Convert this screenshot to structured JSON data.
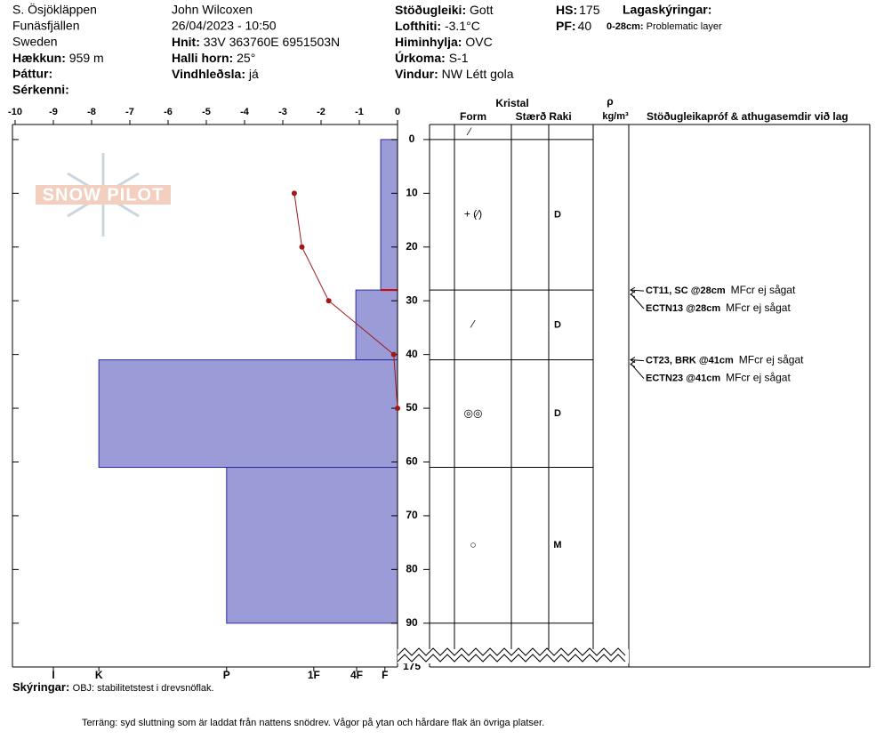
{
  "header": {
    "location": "S. Ösjökläppen",
    "range": "Funäsfjällen",
    "country": "Sweden",
    "elevation_label": "Hækkun:",
    "elevation": "959 m",
    "aspect_label": "Þáttur:",
    "features_label": "Sérkenni:",
    "observer": "John Wilcoxen",
    "datetime": "26/04/2023 - 10:50",
    "coords_label": "Hnit:",
    "coords": "33V 363760E 6951503N",
    "slope_label": "Halli horn:",
    "slope": "25°",
    "wind_loading_label": "Vindhleðsla:",
    "wind_loading": "já",
    "stability_label": "Stöðugleiki:",
    "stability": "Gott",
    "air_temp_label": "Lofthiti:",
    "air_temp": "-3.1°C",
    "sky_label": "Himinhylja:",
    "sky": "OVC",
    "precip_label": "Úrkoma:",
    "precip": "S-1",
    "wind_label": "Vindur:",
    "wind": "NW Létt gola",
    "hs_label": "HS:",
    "hs": 175,
    "pf_label": "PF:",
    "pf": 40,
    "layer_notes_label": "Lagaskýringar:",
    "layer_note_range": "0-28cm:",
    "layer_note": "Problematic layer"
  },
  "logo": "SNOW PILOT",
  "chart_data": {
    "type": "snow-profile",
    "xlim": [
      -10.07,
      0
    ],
    "xticks": [
      -10,
      -9,
      -8,
      -7,
      -6,
      -5,
      -4,
      -3,
      -2,
      -1,
      0
    ],
    "ylim": [
      -2.8,
      95
    ],
    "yticks": [
      0,
      10,
      20,
      30,
      40,
      50,
      60,
      70,
      80,
      90
    ],
    "hardness_lim": [
      0,
      10.07
    ],
    "hardness_ticks": [
      {
        "value": 9.0,
        "label": "I"
      },
      {
        "value": 7.81,
        "label": "K"
      },
      {
        "value": 4.47,
        "label": "P"
      },
      {
        "value": 2.19,
        "label": "1F"
      },
      {
        "value": 1.07,
        "label": "4F"
      },
      {
        "value": 0.33,
        "label": "F"
      }
    ],
    "temperature": {
      "color": "#a01818",
      "depths": [
        10,
        20,
        30,
        40,
        50
      ],
      "values": [
        -2.7,
        -2.5,
        -1.8,
        -0.1,
        0
      ]
    },
    "layers": {
      "color": "#9b9bd8",
      "top": [
        0,
        28,
        41,
        61
      ],
      "bottom": [
        28,
        41,
        61,
        90
      ],
      "hardness": [
        0.44,
        1.09,
        7.81,
        4.47
      ]
    },
    "problem_layer": {
      "depth": 28,
      "color": "#cc0000"
    }
  },
  "table": {
    "headers": {
      "crystal": "Kristal",
      "form": "Form",
      "size": "Stærð",
      "moisture": "Raki",
      "density_symbol": "ρ",
      "density_unit": "kg/m³",
      "tests": "Stöðugleikapróf & athugasemdir við lag"
    },
    "surface_form": "⁄",
    "rows": [
      {
        "form": "+ (⁄)",
        "moisture": "D"
      },
      {
        "form": "⁄",
        "moisture": "D"
      },
      {
        "form": "◎◎",
        "moisture": "D"
      },
      {
        "form": "○",
        "moisture": "M"
      }
    ]
  },
  "tests": [
    {
      "code": "CT11, SC @28cm",
      "note": "MFcr ej sågat",
      "depth": 28
    },
    {
      "code": "ECTN13 @28cm",
      "note": "MFcr ej sågat",
      "depth": 28
    },
    {
      "code": "CT23, BRK @41cm",
      "note": "MFcr ej sågat",
      "depth": 41
    },
    {
      "code": "ECTN23 @41cm",
      "note": "MFcr ej sågat",
      "depth": 41
    }
  ],
  "legend": {
    "label": "Skýringar:",
    "text": "OBJ: stabilitetstest i drevsnöflak."
  },
  "footer": "Terräng: syd sluttning som är laddat från nattens snödrev. Vågor på ytan och hårdare flak än övriga platser."
}
